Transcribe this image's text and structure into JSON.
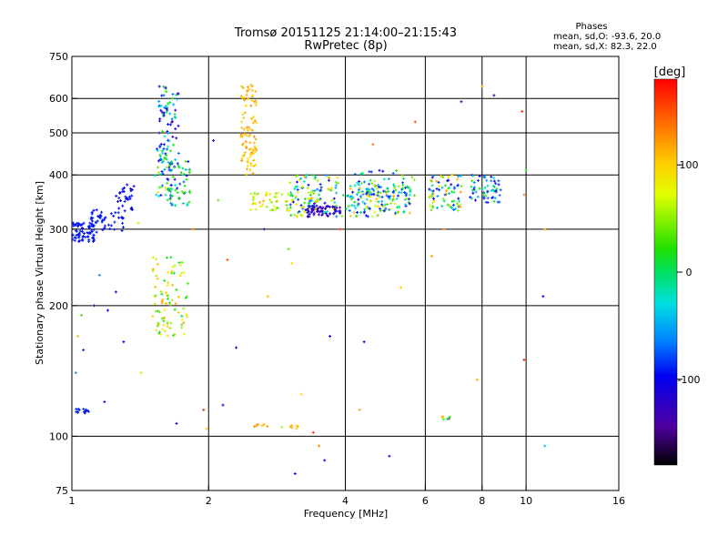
{
  "title": "Tromsø 20151125 21:14:00–21:15:43",
  "subtitle": "RwPretec (8p)",
  "stats": {
    "heading": "Phases",
    "line1": "mean, sd,O: -93.6, 20.0",
    "line2": "mean, sd,X:  82.3, 22.0"
  },
  "chart_data": {
    "type": "scatter",
    "title": "Tromsø 20151125 21:14:00–21:15:43",
    "subtitle": "RwPretec (8p)",
    "xlabel": "Frequency [MHz]",
    "ylabel": "Stationary phase Virtual Height [km]",
    "x_scale": "log",
    "y_scale": "log",
    "xlim": [
      1,
      16
    ],
    "ylim": [
      75,
      750
    ],
    "x_ticks": [
      1,
      2,
      4,
      6,
      8,
      10,
      16
    ],
    "x_tick_labels": [
      "1",
      "2",
      "4",
      "6",
      "8",
      "10",
      "16"
    ],
    "y_ticks": [
      75,
      100,
      200,
      300,
      400,
      500,
      600,
      750
    ],
    "y_tick_labels": [
      "75",
      "100",
      "200",
      "300",
      "400",
      "500",
      "600",
      "750"
    ],
    "grid_x": [
      2,
      4,
      6,
      8,
      10
    ],
    "grid_y": [
      100,
      200,
      300,
      400,
      500,
      600
    ],
    "colorbar": {
      "label": "[deg]",
      "range": [
        -180,
        180
      ],
      "ticks": [
        100,
        0,
        -100
      ],
      "tick_labels": [
        "100",
        "0",
        "-100"
      ]
    },
    "clusters": [
      {
        "x": [
          1.0,
          1.12
        ],
        "y": [
          280,
          310
        ],
        "phase": [
          -100,
          -85
        ],
        "n": 70
      },
      {
        "x": [
          1.1,
          1.3
        ],
        "y": [
          295,
          335
        ],
        "phase": [
          -100,
          -85
        ],
        "n": 45
      },
      {
        "x": [
          1.25,
          1.38
        ],
        "y": [
          330,
          380
        ],
        "phase": [
          -105,
          -90
        ],
        "n": 30
      },
      {
        "x": [
          1.02,
          1.09
        ],
        "y": [
          113,
          116
        ],
        "phase": [
          -95,
          -85
        ],
        "n": 14
      },
      {
        "x": [
          1.52,
          1.66
        ],
        "y": [
          350,
          460
        ],
        "phase": [
          -120,
          90
        ],
        "n": 45
      },
      {
        "x": [
          1.55,
          1.72
        ],
        "y": [
          430,
          640
        ],
        "phase": [
          -130,
          30
        ],
        "n": 70
      },
      {
        "x": [
          1.62,
          1.82
        ],
        "y": [
          340,
          430
        ],
        "phase": [
          -120,
          40
        ],
        "n": 60
      },
      {
        "x": [
          1.5,
          1.8
        ],
        "y": [
          170,
          260
        ],
        "phase": [
          0,
          120
        ],
        "n": 85
      },
      {
        "x": [
          2.35,
          2.55
        ],
        "y": [
          400,
          650
        ],
        "phase": [
          90,
          130
        ],
        "n": 90
      },
      {
        "x": [
          2.45,
          3.0
        ],
        "y": [
          330,
          370
        ],
        "phase": [
          30,
          120
        ],
        "n": 45
      },
      {
        "x": [
          3.0,
          3.85
        ],
        "y": [
          320,
          400
        ],
        "phase": [
          -130,
          120
        ],
        "n": 120
      },
      {
        "x": [
          3.3,
          3.9
        ],
        "y": [
          320,
          340
        ],
        "phase": [
          -140,
          -110
        ],
        "n": 60
      },
      {
        "x": [
          3.9,
          5.6
        ],
        "y": [
          320,
          380
        ],
        "phase": [
          -110,
          120
        ],
        "n": 140
      },
      {
        "x": [
          4.2,
          5.7
        ],
        "y": [
          350,
          410
        ],
        "phase": [
          -120,
          60
        ],
        "n": 60
      },
      {
        "x": [
          6.1,
          7.2
        ],
        "y": [
          330,
          400
        ],
        "phase": [
          -110,
          130
        ],
        "n": 75
      },
      {
        "x": [
          7.5,
          8.8
        ],
        "y": [
          345,
          400
        ],
        "phase": [
          -120,
          40
        ],
        "n": 60
      },
      {
        "x": [
          6.5,
          6.9
        ],
        "y": [
          109,
          111
        ],
        "phase": [
          -80,
          180
        ],
        "n": 8
      },
      {
        "x": [
          2.5,
          2.7
        ],
        "y": [
          105,
          107
        ],
        "phase": [
          110,
          125
        ],
        "n": 7
      },
      {
        "x": [
          3.0,
          3.15
        ],
        "y": [
          104,
          106
        ],
        "phase": [
          100,
          120
        ],
        "n": 6
      }
    ],
    "scatter": [
      {
        "x": 1.05,
        "y": 190,
        "phase": 30
      },
      {
        "x": 1.03,
        "y": 170,
        "phase": 110
      },
      {
        "x": 1.06,
        "y": 158,
        "phase": -90
      },
      {
        "x": 1.02,
        "y": 140,
        "phase": -60
      },
      {
        "x": 1.12,
        "y": 200,
        "phase": -120
      },
      {
        "x": 1.2,
        "y": 195,
        "phase": -100
      },
      {
        "x": 1.25,
        "y": 215,
        "phase": -110
      },
      {
        "x": 1.3,
        "y": 165,
        "phase": -100
      },
      {
        "x": 1.15,
        "y": 235,
        "phase": -60
      },
      {
        "x": 1.18,
        "y": 120,
        "phase": -110
      },
      {
        "x": 1.4,
        "y": 310,
        "phase": 90
      },
      {
        "x": 1.42,
        "y": 140,
        "phase": 60
      },
      {
        "x": 1.7,
        "y": 107,
        "phase": -110
      },
      {
        "x": 1.85,
        "y": 300,
        "phase": 130
      },
      {
        "x": 1.95,
        "y": 115,
        "phase": 160
      },
      {
        "x": 1.98,
        "y": 104,
        "phase": 100
      },
      {
        "x": 2.05,
        "y": 480,
        "phase": -120
      },
      {
        "x": 2.1,
        "y": 350,
        "phase": 40
      },
      {
        "x": 2.15,
        "y": 118,
        "phase": -110
      },
      {
        "x": 2.2,
        "y": 255,
        "phase": 150
      },
      {
        "x": 2.3,
        "y": 160,
        "phase": -100
      },
      {
        "x": 2.65,
        "y": 300,
        "phase": -140
      },
      {
        "x": 2.7,
        "y": 210,
        "phase": 110
      },
      {
        "x": 2.9,
        "y": 105,
        "phase": 60
      },
      {
        "x": 3.0,
        "y": 270,
        "phase": 40
      },
      {
        "x": 3.05,
        "y": 250,
        "phase": 90
      },
      {
        "x": 3.1,
        "y": 82,
        "phase": -100
      },
      {
        "x": 3.2,
        "y": 125,
        "phase": 100
      },
      {
        "x": 3.4,
        "y": 102,
        "phase": 160
      },
      {
        "x": 3.5,
        "y": 95,
        "phase": 130
      },
      {
        "x": 3.6,
        "y": 88,
        "phase": -120
      },
      {
        "x": 3.7,
        "y": 170,
        "phase": -100
      },
      {
        "x": 3.9,
        "y": 300,
        "phase": 160
      },
      {
        "x": 4.3,
        "y": 115,
        "phase": 120
      },
      {
        "x": 4.4,
        "y": 165,
        "phase": -110
      },
      {
        "x": 4.6,
        "y": 470,
        "phase": 140
      },
      {
        "x": 5.0,
        "y": 90,
        "phase": -100
      },
      {
        "x": 5.3,
        "y": 220,
        "phase": 100
      },
      {
        "x": 5.7,
        "y": 530,
        "phase": 150
      },
      {
        "x": 6.2,
        "y": 260,
        "phase": 120
      },
      {
        "x": 6.6,
        "y": 300,
        "phase": 130
      },
      {
        "x": 7.2,
        "y": 590,
        "phase": -120
      },
      {
        "x": 7.8,
        "y": 135,
        "phase": 120
      },
      {
        "x": 8.0,
        "y": 640,
        "phase": 110
      },
      {
        "x": 8.5,
        "y": 610,
        "phase": -120
      },
      {
        "x": 9.8,
        "y": 560,
        "phase": 160
      },
      {
        "x": 9.9,
        "y": 360,
        "phase": 130
      },
      {
        "x": 10.0,
        "y": 410,
        "phase": 20
      },
      {
        "x": 9.9,
        "y": 150,
        "phase": 170
      },
      {
        "x": 10.9,
        "y": 210,
        "phase": -100
      },
      {
        "x": 11.0,
        "y": 300,
        "phase": 110
      },
      {
        "x": 11.0,
        "y": 95,
        "phase": -40
      }
    ]
  }
}
